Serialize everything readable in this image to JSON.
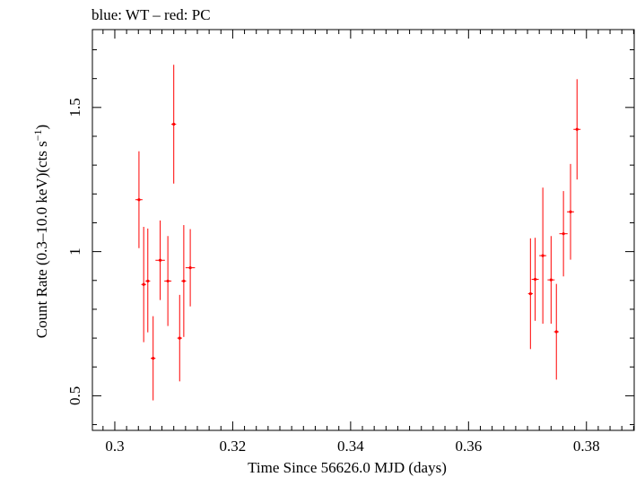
{
  "chart_data": {
    "type": "scatter",
    "title": "blue: WT – red: PC",
    "xlabel": "Time Since 56626.0 MJD (days)",
    "ylabel": "Count Rate (0.3–10.0 keV)(cts s",
    "ylabel_sup": "−1",
    "ylabel_end": ")",
    "xlim": [
      0.2962,
      0.3881
    ],
    "ylim": [
      0.38,
      1.77
    ],
    "xticks": [
      0.3,
      0.32,
      0.34,
      0.36,
      0.38
    ],
    "xtick_labels": [
      "0.3",
      "0.32",
      "0.34",
      "0.36",
      "0.38"
    ],
    "yticks": [
      0.5,
      1.0,
      1.5
    ],
    "ytick_labels": [
      "0.5",
      "1",
      "1.5"
    ],
    "grid": false,
    "series": [
      {
        "name": "PC",
        "color": "#ff0000",
        "points": [
          {
            "x": 0.3041,
            "y": 1.18,
            "ylo": 1.012,
            "yhi": 1.348,
            "xerr": 0.0006
          },
          {
            "x": 0.3049,
            "y": 0.886,
            "ylo": 0.686,
            "yhi": 1.086,
            "xerr": 0.0004
          },
          {
            "x": 0.3056,
            "y": 0.898,
            "ylo": 0.72,
            "yhi": 1.08,
            "xerr": 0.0004
          },
          {
            "x": 0.3065,
            "y": 0.63,
            "ylo": 0.484,
            "yhi": 0.776,
            "xerr": 0.0004
          },
          {
            "x": 0.3077,
            "y": 0.97,
            "ylo": 0.832,
            "yhi": 1.108,
            "xerr": 0.0008
          },
          {
            "x": 0.309,
            "y": 0.898,
            "ylo": 0.742,
            "yhi": 1.054,
            "xerr": 0.0006
          },
          {
            "x": 0.31,
            "y": 1.442,
            "ylo": 1.236,
            "yhi": 1.648,
            "xerr": 0.0004
          },
          {
            "x": 0.311,
            "y": 0.7,
            "ylo": 0.55,
            "yhi": 0.85,
            "xerr": 0.0004
          },
          {
            "x": 0.3117,
            "y": 0.898,
            "ylo": 0.704,
            "yhi": 1.092,
            "xerr": 0.0004
          },
          {
            "x": 0.3128,
            "y": 0.944,
            "ylo": 0.81,
            "yhi": 1.078,
            "xerr": 0.0008
          },
          {
            "x": 0.3705,
            "y": 0.854,
            "ylo": 0.662,
            "yhi": 1.046,
            "xerr": 0.0004
          },
          {
            "x": 0.3713,
            "y": 0.904,
            "ylo": 0.76,
            "yhi": 1.048,
            "xerr": 0.0006
          },
          {
            "x": 0.3726,
            "y": 0.986,
            "ylo": 0.75,
            "yhi": 1.222,
            "xerr": 0.0006
          },
          {
            "x": 0.374,
            "y": 0.902,
            "ylo": 0.75,
            "yhi": 1.054,
            "xerr": 0.0006
          },
          {
            "x": 0.3749,
            "y": 0.722,
            "ylo": 0.556,
            "yhi": 0.888,
            "xerr": 0.0004
          },
          {
            "x": 0.3761,
            "y": 1.062,
            "ylo": 0.914,
            "yhi": 1.21,
            "xerr": 0.0007
          },
          {
            "x": 0.3773,
            "y": 1.138,
            "ylo": 0.972,
            "yhi": 1.304,
            "xerr": 0.0006
          },
          {
            "x": 0.3784,
            "y": 1.424,
            "ylo": 1.25,
            "yhi": 1.598,
            "xerr": 0.0006
          }
        ]
      }
    ]
  }
}
